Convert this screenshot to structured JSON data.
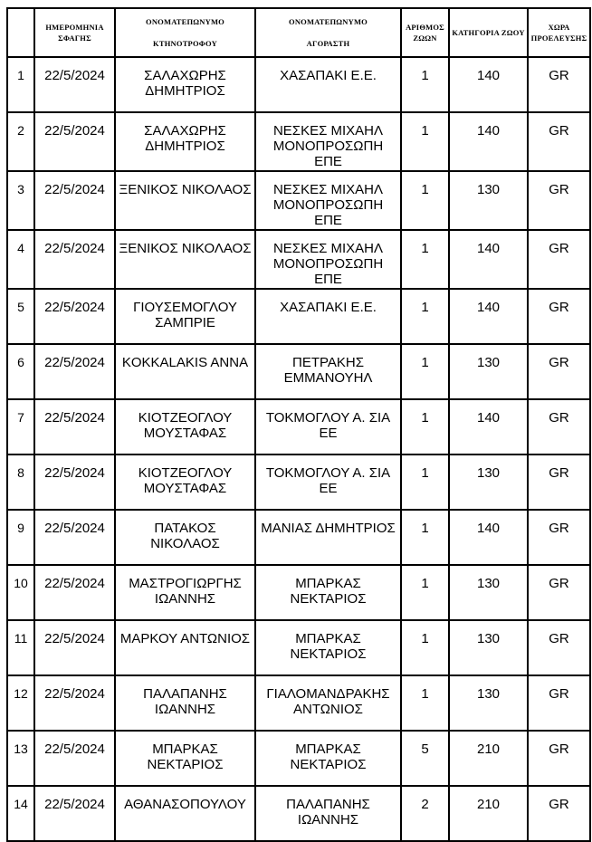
{
  "colors": {
    "background": "#ffffff",
    "border": "#000000",
    "text": "#000000"
  },
  "table": {
    "columns": [
      {
        "name": "row-number",
        "label": ""
      },
      {
        "name": "slaughter-date",
        "label": "ΗΜΕΡΟΜΗΝΙΑ\nΣΦΑΓΗΣ"
      },
      {
        "name": "breeder-name",
        "label": "ΟΝΟΜΑΤΕΠΩΝΥΜΟ\n\nΚΤΗΝΟΤΡΟΦΟΥ"
      },
      {
        "name": "buyer-name",
        "label": "ΟΝΟΜΑΤΕΠΩΝΥΜΟ\n\nΑΓΟΡΑΣΤΗ"
      },
      {
        "name": "animal-count",
        "label": "ΑΡΙΘΜΟΣ\nΖΩΩΝ"
      },
      {
        "name": "animal-category",
        "label": "ΚΑΤΗΓΟΡΙΑ ΖΩΟΥ"
      },
      {
        "name": "origin-country",
        "label": "ΧΩΡΑ\nΠΡΟΕΛΕΥΣΗΣ"
      }
    ],
    "rows": [
      [
        "1",
        "22/5/2024",
        "ΣΑΛΑΧΩΡΗΣ\nΔΗΜΗΤΡΙΟΣ",
        "ΧΑΣΑΠΑΚΙ Ε.Ε.",
        "1",
        "140",
        "GR"
      ],
      [
        "2",
        "22/5/2024",
        "ΣΑΛΑΧΩΡΗΣ\nΔΗΜΗΤΡΙΟΣ",
        "ΝΕΣΚΕΣ ΜΙΧΑΗΛ\nΜΟΝΟΠΡΟΣΩΠΗ ΕΠΕ",
        "1",
        "140",
        "GR"
      ],
      [
        "3",
        "22/5/2024",
        "ΞΕΝΙΚΟΣ ΝΙΚΟΛΑΟΣ",
        "ΝΕΣΚΕΣ ΜΙΧΑΗΛ\nΜΟΝΟΠΡΟΣΩΠΗ ΕΠΕ",
        "1",
        "130",
        "GR"
      ],
      [
        "4",
        "22/5/2024",
        "ΞΕΝΙΚΟΣ ΝΙΚΟΛΑΟΣ",
        "ΝΕΣΚΕΣ ΜΙΧΑΗΛ\nΜΟΝΟΠΡΟΣΩΠΗ ΕΠΕ",
        "1",
        "140",
        "GR"
      ],
      [
        "5",
        "22/5/2024",
        "ΓΙΟΥΣΕΜΟΓΛΟΥ\nΣΑΜΠΡΙΕ",
        "ΧΑΣΑΠΑΚΙ Ε.Ε.",
        "1",
        "140",
        "GR"
      ],
      [
        "6",
        "22/5/2024",
        "KOKKALAKIS ANNA",
        "ΠΕΤΡΑΚΗΣ\nΕΜΜΑΝΟΥΗΛ",
        "1",
        "130",
        "GR"
      ],
      [
        "7",
        "22/5/2024",
        "ΚΙΟΤΖΕΟΓΛΟΥ\nΜΟΥΣΤΑΦΑΣ",
        "ΤΟΚΜΟΓΛΟΥ Α. ΣΙΑ ΕΕ",
        "1",
        "140",
        "GR"
      ],
      [
        "8",
        "22/5/2024",
        "ΚΙΟΤΖΕΟΓΛΟΥ\nΜΟΥΣΤΑΦΑΣ",
        "ΤΟΚΜΟΓΛΟΥ Α. ΣΙΑ ΕΕ",
        "1",
        "130",
        "GR"
      ],
      [
        "9",
        "22/5/2024",
        "ΠΑΤΑΚΟΣ ΝΙΚΟΛΑΟΣ",
        "ΜΑΝΙΑΣ ΔΗΜΗΤΡΙΟΣ",
        "1",
        "140",
        "GR"
      ],
      [
        "10",
        "22/5/2024",
        "ΜΑΣΤΡΟΓΙΩΡΓΗΣ\nΙΩΑΝΝΗΣ",
        "ΜΠΑΡΚΑΣ ΝΕΚΤΑΡΙΟΣ",
        "1",
        "130",
        "GR"
      ],
      [
        "11",
        "22/5/2024",
        "ΜΑΡΚΟΥ ΑΝΤΩΝΙΟΣ",
        "ΜΠΑΡΚΑΣ ΝΕΚΤΑΡΙΟΣ",
        "1",
        "130",
        "GR"
      ],
      [
        "12",
        "22/5/2024",
        "ΠΑΛΑΠΑΝΗΣ\nΙΩΑΝΝΗΣ",
        "ΓΙΑΛΟΜΑΝΔΡΑΚΗΣ\nΑΝΤΩΝΙΟΣ",
        "1",
        "130",
        "GR"
      ],
      [
        "13",
        "22/5/2024",
        "ΜΠΑΡΚΑΣ\nΝΕΚΤΑΡΙΟΣ",
        "ΜΠΑΡΚΑΣ ΝΕΚΤΑΡΙΟΣ",
        "5",
        "210",
        "GR"
      ],
      [
        "14",
        "22/5/2024",
        "ΑΘΑΝΑΣΟΠΟΥΛΟΥ",
        "ΠΑΛΑΠΑΝΗΣ ΙΩΑΝΝΗΣ",
        "2",
        "210",
        "GR"
      ]
    ]
  }
}
